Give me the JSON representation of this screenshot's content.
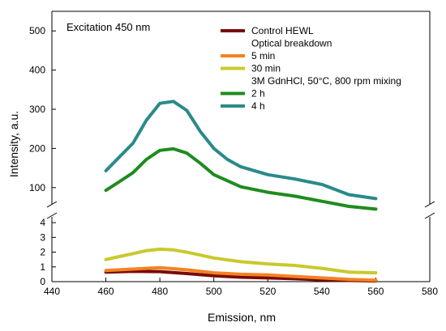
{
  "chart_data": {
    "type": "line",
    "title": "",
    "annotation": "Excitation 450 nm",
    "xlabel": "Emission, nm",
    "ylabel": "Intensity, a.u.",
    "xlim": [
      440,
      580
    ],
    "x_ticks": [
      440,
      460,
      480,
      500,
      520,
      540,
      560,
      580
    ],
    "ylim_upper": [
      50,
      550
    ],
    "y_ticks_upper": [
      100,
      200,
      300,
      400,
      500
    ],
    "ylim_lower": [
      0,
      4.5
    ],
    "y_ticks_lower": [
      0,
      1,
      2,
      3,
      4
    ],
    "broken_y_axis": true,
    "grid": false,
    "legend_position": "top-right",
    "legend_groups": [
      {
        "header": "",
        "items": [
          {
            "label": "Control HEWL",
            "color": "#7a0a0a"
          }
        ]
      },
      {
        "header": "Optical breakdown",
        "items": [
          {
            "label": "5 min",
            "color": "#f58220"
          },
          {
            "label": "30 min",
            "color": "#c9c92c"
          }
        ]
      },
      {
        "header": "3M GdnHCl, 50°C, 800 rpm mixing",
        "items": [
          {
            "label": "2 h",
            "color": "#1e8c1e"
          },
          {
            "label": "4 h",
            "color": "#2a8a8a"
          }
        ]
      }
    ],
    "series": [
      {
        "name": "Control HEWL",
        "color": "#7a0a0a",
        "panel": "lower",
        "x": [
          460,
          470,
          480,
          490,
          500,
          510,
          520,
          530,
          540,
          550,
          560
        ],
        "y": [
          0.65,
          0.7,
          0.68,
          0.55,
          0.4,
          0.3,
          0.25,
          0.2,
          0.12,
          0.08,
          0.05
        ]
      },
      {
        "name": "5 min",
        "color": "#f58220",
        "panel": "lower",
        "x": [
          460,
          470,
          480,
          490,
          500,
          510,
          520,
          530,
          540,
          550,
          560
        ],
        "y": [
          0.75,
          0.85,
          0.95,
          0.8,
          0.6,
          0.5,
          0.45,
          0.35,
          0.25,
          0.15,
          0.1
        ]
      },
      {
        "name": "30 min",
        "color": "#c9c92c",
        "panel": "lower",
        "x": [
          460,
          465,
          470,
          475,
          480,
          485,
          490,
          500,
          510,
          520,
          530,
          540,
          550,
          560
        ],
        "y": [
          1.5,
          1.7,
          1.9,
          2.1,
          2.2,
          2.15,
          2.0,
          1.6,
          1.35,
          1.2,
          1.1,
          0.9,
          0.65,
          0.6
        ]
      },
      {
        "name": "2 h",
        "color": "#1e8c1e",
        "panel": "upper",
        "x": [
          460,
          465,
          470,
          475,
          480,
          485,
          490,
          495,
          500,
          510,
          520,
          530,
          540,
          550,
          560
        ],
        "y": [
          93,
          115,
          138,
          172,
          195,
          199,
          188,
          162,
          133,
          102,
          88,
          78,
          65,
          52,
          45
        ]
      },
      {
        "name": "4 h",
        "color": "#2a8a8a",
        "panel": "upper",
        "x": [
          460,
          465,
          470,
          475,
          480,
          485,
          490,
          495,
          500,
          505,
          510,
          520,
          530,
          540,
          550,
          560
        ],
        "y": [
          143,
          178,
          213,
          272,
          315,
          320,
          297,
          243,
          200,
          172,
          153,
          133,
          122,
          108,
          82,
          72
        ]
      }
    ]
  }
}
